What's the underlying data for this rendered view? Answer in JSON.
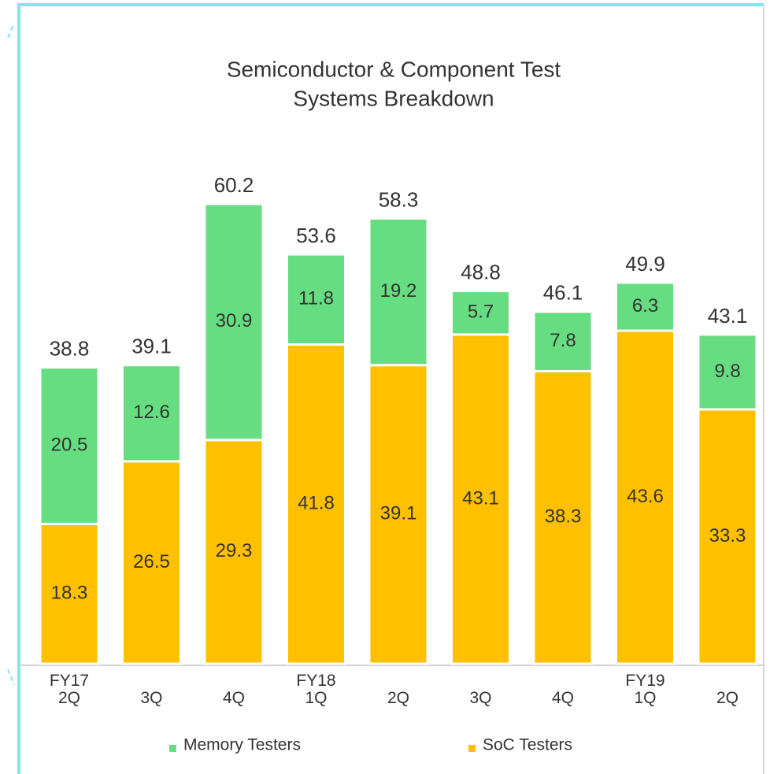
{
  "chart_data": {
    "type": "stacked-bar",
    "title": "Semiconductor & Component Test",
    "subtitle": "Systems Breakdown",
    "categories": [
      "FY17\n2Q",
      "3Q",
      "4Q",
      "FY18\n1Q",
      "2Q",
      "3Q",
      "4Q",
      "FY19\n1Q",
      "2Q"
    ],
    "series": [
      {
        "name": "SoC Testers",
        "color": "#ffc000",
        "values": [
          18.3,
          26.5,
          29.3,
          41.8,
          39.1,
          43.1,
          38.3,
          43.6,
          33.3
        ]
      },
      {
        "name": "Memory Testers",
        "color": "#66dd80",
        "values": [
          20.5,
          12.6,
          30.9,
          11.8,
          19.2,
          5.7,
          7.8,
          6.3,
          9.8
        ]
      }
    ],
    "totals": [
      38.8,
      39.1,
      60.2,
      53.6,
      58.3,
      48.8,
      46.1,
      49.9,
      43.1
    ],
    "legend": "bottom"
  }
}
